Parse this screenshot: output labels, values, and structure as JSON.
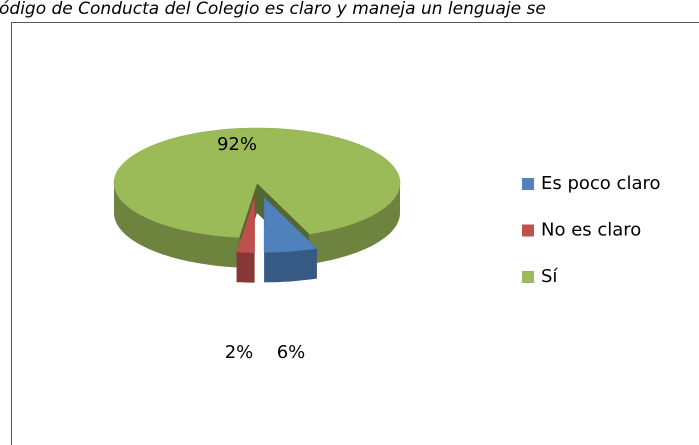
{
  "chart_data": {
    "type": "pie",
    "title": "ódigo de Conducta del Colegio es claro y maneja un lenguaje se",
    "categories": [
      "Es poco claro",
      "No es claro",
      "Sí"
    ],
    "values": [
      6,
      2,
      92
    ],
    "value_labels": [
      "6%",
      "2%",
      "92%"
    ],
    "colors": [
      "#4f81bd",
      "#c0504d",
      "#9bbb59"
    ],
    "legend": "right"
  }
}
